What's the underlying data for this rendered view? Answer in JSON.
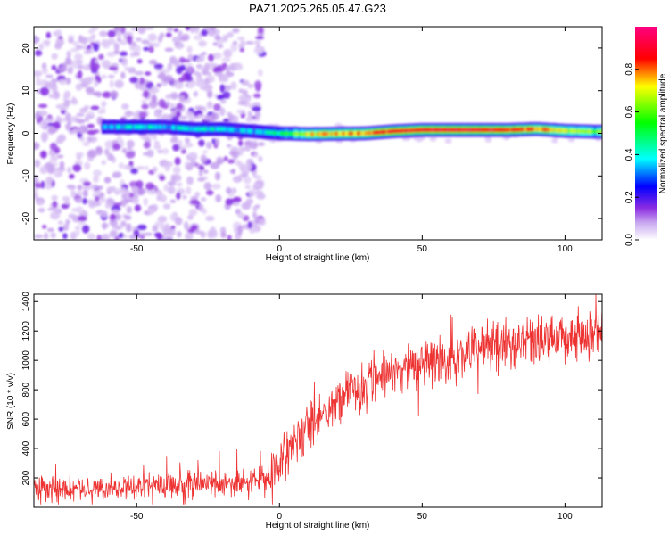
{
  "title": "PAZ1.2025.265.05.47.G23",
  "colorbar": {
    "label": "Normalized spectral amplitude",
    "ticks": [
      "0.0",
      "0.2",
      "0.4",
      "0.6",
      "0.8"
    ],
    "tick_values": [
      0.0,
      0.2,
      0.4,
      0.6,
      0.8
    ],
    "range": [
      0,
      1
    ]
  },
  "chart_data": [
    {
      "type": "heatmap",
      "title": "PAZ1.2025.265.05.47.G23",
      "xlabel": "Height of straight line (km)",
      "ylabel": "Frequency (Hz)",
      "xlim": [
        -86,
        113
      ],
      "ylim": [
        -25,
        25
      ],
      "x_ticks": [
        -50,
        0,
        50,
        100
      ],
      "x_tick_labels": [
        "-50",
        "0",
        "50",
        "100"
      ],
      "y_ticks": [
        -20,
        -10,
        0,
        10,
        20
      ],
      "y_tick_labels": [
        "-20",
        "-10",
        "0",
        "10",
        "20"
      ],
      "ridge": {
        "description_values": "Dominant frequency near 0 Hz across heights",
        "x": [
          -62,
          -50,
          -40,
          -30,
          -20,
          -10,
          0,
          10,
          20,
          30,
          40,
          50,
          60,
          70,
          80,
          90,
          100,
          110
        ],
        "frequency": [
          1.5,
          1.5,
          1.5,
          1.0,
          1.0,
          0.5,
          0.0,
          -0.2,
          -0.1,
          0.0,
          0.5,
          0.8,
          0.8,
          0.8,
          0.8,
          1.0,
          0.6,
          0.4
        ],
        "amplitude": [
          0.35,
          0.4,
          0.35,
          0.4,
          0.4,
          0.35,
          0.45,
          0.7,
          0.75,
          0.8,
          0.85,
          0.9,
          0.9,
          0.9,
          0.85,
          0.8,
          0.7,
          0.6
        ]
      },
      "grid": false
    },
    {
      "type": "line",
      "xlabel": "Height of straight line (km)",
      "ylabel": "SNR (10 * v/v)",
      "xlim": [
        -86,
        113
      ],
      "ylim": [
        0,
        1450
      ],
      "x_ticks": [
        -50,
        0,
        50,
        100
      ],
      "x_tick_labels": [
        "-50",
        "0",
        "50",
        "100"
      ],
      "y_ticks": [
        200,
        400,
        600,
        800,
        1000,
        1200,
        1400
      ],
      "y_tick_labels": [
        "200",
        "400",
        "600",
        "800",
        "1000",
        "1200",
        "1400"
      ],
      "color": "#ee3333",
      "series_trend": {
        "x": [
          -86,
          -70,
          -50,
          -30,
          -10,
          -5,
          0,
          5,
          10,
          20,
          30,
          40,
          50,
          60,
          70,
          80,
          90,
          100,
          113
        ],
        "y": [
          130,
          130,
          140,
          150,
          170,
          200,
          300,
          420,
          560,
          720,
          830,
          930,
          980,
          1020,
          1070,
          1110,
          1130,
          1150,
          1170
        ]
      },
      "grid": false
    }
  ]
}
